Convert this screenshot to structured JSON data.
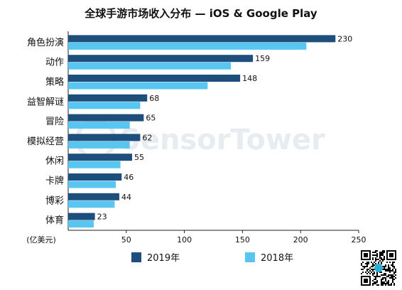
{
  "chart_data": {
    "type": "bar",
    "orientation": "horizontal",
    "title": "全球手游市场收入分布 — iOS & Google Play",
    "categories": [
      "角色扮演",
      "动作",
      "策略",
      "益智解谜",
      "冒险",
      "模拟经营",
      "休闲",
      "卡牌",
      "博彩",
      "体育"
    ],
    "series": [
      {
        "name": "2019年",
        "color": "#1e4e7b",
        "values": [
          230,
          159,
          148,
          68,
          65,
          62,
          55,
          46,
          44,
          23
        ]
      },
      {
        "name": "2018年",
        "color": "#59c6f2",
        "values": [
          205,
          140,
          120,
          62,
          53,
          53,
          45,
          41,
          40,
          22
        ]
      }
    ],
    "data_labels_series": "2019年",
    "xlabel": "(亿美元)",
    "xlim": [
      0,
      250
    ],
    "xticks": [
      50,
      100,
      150,
      200,
      250
    ],
    "grid": false,
    "legend_position": "bottom"
  },
  "watermark_text": "SensorTower"
}
